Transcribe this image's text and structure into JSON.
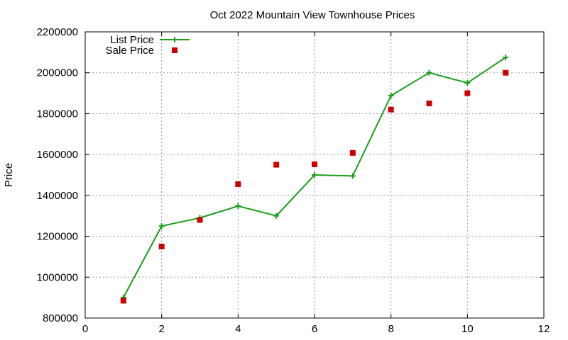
{
  "chart_data": {
    "type": "line",
    "title": "Oct 2022 Mountain View Townhouse Prices",
    "xlabel": "",
    "ylabel": "Price",
    "xlim": [
      0,
      12
    ],
    "ylim": [
      800000,
      2200000
    ],
    "xticks": [
      0,
      2,
      4,
      6,
      8,
      10,
      12
    ],
    "yticks": [
      800000,
      1000000,
      1200000,
      1400000,
      1600000,
      1800000,
      2000000,
      2200000
    ],
    "grid": true,
    "legend_position": "top-left",
    "series": [
      {
        "name": "List Price",
        "style": "line-with-plus-markers",
        "color": "#1a9e1a",
        "x": [
          1,
          2,
          3,
          4,
          5,
          6,
          7,
          8,
          9,
          10,
          11
        ],
        "y": [
          900000,
          1250000,
          1290000,
          1348000,
          1300000,
          1500000,
          1495000,
          1888000,
          2000000,
          1950000,
          2075000
        ]
      },
      {
        "name": "Sale Price",
        "style": "square-markers",
        "color": "#cc0000",
        "x": [
          1,
          2,
          3,
          4,
          5,
          6,
          7,
          8,
          9,
          10,
          11
        ],
        "y": [
          885000,
          1150000,
          1280000,
          1455000,
          1550000,
          1552000,
          1608000,
          1820000,
          1850000,
          1900000,
          2000000
        ]
      }
    ]
  }
}
